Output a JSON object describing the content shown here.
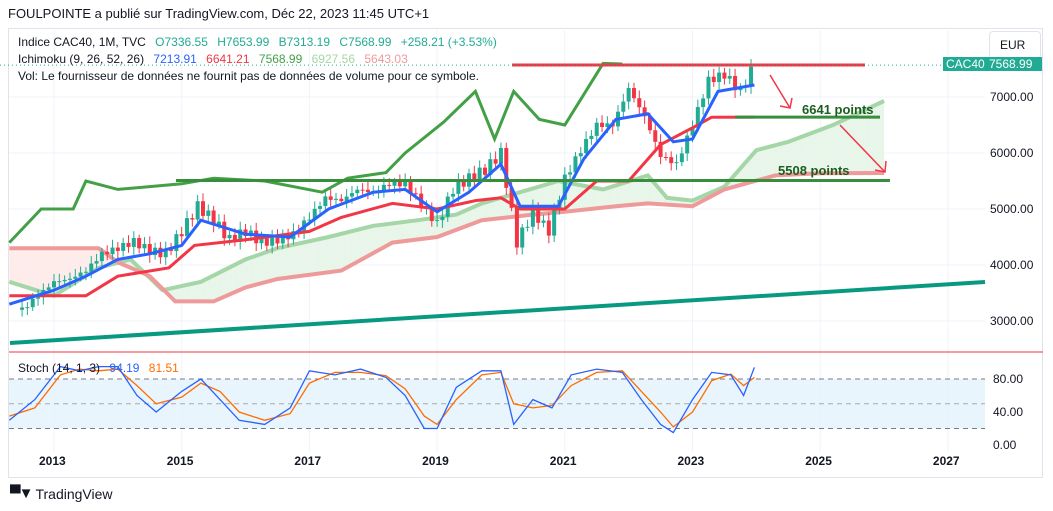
{
  "header": {
    "published": "FOULPOINTE a publié sur TradingView.com, Déc 22, 2023 11:45 UTC+1"
  },
  "legend": {
    "symbol": "Indice CAC40, 1M, TVC",
    "open": "O7336.55",
    "high": "H7653.99",
    "low": "B7313.19",
    "close": "C7568.99",
    "change": "+258.21 (+3.53%)",
    "ichimoku": "Ichimoku (9, 26, 52, 26)",
    "ich_values": [
      "7213.91",
      "6641.21",
      "7568.99",
      "6927.56",
      "5643.03"
    ],
    "vol": "Vol: Le fournisseur de données ne fournit pas de données de volume pour ce symbole.",
    "stoch": "Stoch (14, 1, 3)",
    "stoch_k": "94.19",
    "stoch_d": "81.51"
  },
  "currency": "EUR",
  "price_tag": {
    "symbol": "CAC40",
    "value": "7568.99"
  },
  "annotations": {
    "label_6641": "6641 points",
    "label_5508": "5508 points"
  },
  "footer": {
    "brand": "TradingView"
  },
  "colors": {
    "up": "#22ab94",
    "down": "#f23645",
    "tenkan": "#2962ff",
    "kijun": "#f23645",
    "spanA": "#a5d6a7",
    "spanB": "#ef9a9a",
    "lagging": "#43a047",
    "stochK": "#2962ff",
    "stochD": "#ff6d00"
  },
  "chart_data": {
    "type": "line",
    "title": "Indice CAC40, 1M, TVC",
    "x_ticks": [
      "2013",
      "2015",
      "2017",
      "2019",
      "2021",
      "2023",
      "2025",
      "2027"
    ],
    "y_ticks": [
      "7000.00",
      "6000.00",
      "5000.00",
      "4000.00",
      "3000.00"
    ],
    "stoch_ticks": [
      "80.00",
      "40.00",
      "0.00"
    ],
    "xlim": [
      2012.3,
      2027.6
    ],
    "ylim": [
      2500,
      8000
    ],
    "close": [
      [
        2012.5,
        3200
      ],
      [
        2012.75,
        3450
      ],
      [
        2013,
        3700
      ],
      [
        2013.25,
        3750
      ],
      [
        2013.5,
        3900
      ],
      [
        2013.75,
        4200
      ],
      [
        2014,
        4300
      ],
      [
        2014.25,
        4420
      ],
      [
        2014.5,
        4250
      ],
      [
        2014.75,
        4200
      ],
      [
        2015,
        4600
      ],
      [
        2015.25,
        5050
      ],
      [
        2015.5,
        4800
      ],
      [
        2015.75,
        4450
      ],
      [
        2016,
        4600
      ],
      [
        2016.25,
        4400
      ],
      [
        2016.5,
        4450
      ],
      [
        2016.75,
        4550
      ],
      [
        2017,
        4850
      ],
      [
        2017.25,
        5200
      ],
      [
        2017.5,
        5150
      ],
      [
        2017.75,
        5350
      ],
      [
        2018,
        5300
      ],
      [
        2018.25,
        5450
      ],
      [
        2018.5,
        5450
      ],
      [
        2018.75,
        5100
      ],
      [
        2019,
        4730
      ],
      [
        2019.25,
        5350
      ],
      [
        2019.5,
        5550
      ],
      [
        2019.75,
        5700
      ],
      [
        2020,
        6000
      ],
      [
        2020.25,
        4400
      ],
      [
        2020.5,
        4950
      ],
      [
        2020.75,
        4600
      ],
      [
        2021,
        5550
      ],
      [
        2021.25,
        6050
      ],
      [
        2021.5,
        6500
      ],
      [
        2021.75,
        6500
      ],
      [
        2022,
        7150
      ],
      [
        2022.25,
        6650
      ],
      [
        2022.5,
        5950
      ],
      [
        2022.75,
        5800
      ],
      [
        2023,
        6500
      ],
      [
        2023.25,
        7300
      ],
      [
        2023.5,
        7400
      ],
      [
        2023.75,
        7100
      ],
      [
        2023.97,
        7569
      ]
    ],
    "tenkan": [
      [
        2012.3,
        3300
      ],
      [
        2013,
        3550
      ],
      [
        2013.5,
        3800
      ],
      [
        2014,
        4100
      ],
      [
        2014.5,
        4200
      ],
      [
        2015,
        4350
      ],
      [
        2015.3,
        4800
      ],
      [
        2016,
        4550
      ],
      [
        2016.7,
        4500
      ],
      [
        2017.3,
        5000
      ],
      [
        2018,
        5300
      ],
      [
        2018.5,
        5350
      ],
      [
        2019,
        4950
      ],
      [
        2019.5,
        5300
      ],
      [
        2020,
        5800
      ],
      [
        2020.3,
        5050
      ],
      [
        2020.9,
        5050
      ],
      [
        2021.3,
        5900
      ],
      [
        2021.8,
        6600
      ],
      [
        2022.3,
        6700
      ],
      [
        2022.7,
        6200
      ],
      [
        2023,
        6250
      ],
      [
        2023.4,
        7100
      ],
      [
        2023.97,
        7214
      ]
    ],
    "kijun": [
      [
        2012.3,
        3450
      ],
      [
        2013.5,
        3450
      ],
      [
        2014,
        3800
      ],
      [
        2014.8,
        3950
      ],
      [
        2015.2,
        4350
      ],
      [
        2016,
        4450
      ],
      [
        2017,
        4600
      ],
      [
        2017.5,
        4850
      ],
      [
        2018.3,
        5100
      ],
      [
        2019,
        5000
      ],
      [
        2019.6,
        5150
      ],
      [
        2020,
        5200
      ],
      [
        2020.3,
        5000
      ],
      [
        2021,
        5000
      ],
      [
        2021.5,
        5500
      ],
      [
        2022,
        5500
      ],
      [
        2022.5,
        6150
      ],
      [
        2023,
        6450
      ],
      [
        2023.3,
        6640
      ],
      [
        2023.97,
        6641
      ]
    ],
    "spanA": [
      [
        2012.3,
        3700
      ],
      [
        2013,
        3450
      ],
      [
        2013.7,
        3950
      ],
      [
        2014.2,
        4100
      ],
      [
        2014.7,
        3550
      ],
      [
        2015.3,
        3700
      ],
      [
        2016,
        4100
      ],
      [
        2016.5,
        4300
      ],
      [
        2017.3,
        4500
      ],
      [
        2018,
        4700
      ],
      [
        2018.7,
        4800
      ],
      [
        2019.3,
        4900
      ],
      [
        2019.7,
        5100
      ],
      [
        2020.3,
        5300
      ],
      [
        2020.9,
        5500
      ],
      [
        2021.6,
        5350
      ],
      [
        2022.3,
        5600
      ],
      [
        2022.6,
        5200
      ],
      [
        2023,
        5150
      ],
      [
        2023.5,
        5400
      ],
      [
        2024,
        6050
      ],
      [
        2024.5,
        6200
      ],
      [
        2025.2,
        6500
      ],
      [
        2026,
        6930
      ]
    ],
    "spanB": [
      [
        2012.3,
        4300
      ],
      [
        2013.7,
        4300
      ],
      [
        2014,
        4050
      ],
      [
        2014.5,
        3800
      ],
      [
        2014.9,
        3350
      ],
      [
        2015.5,
        3350
      ],
      [
        2016,
        3600
      ],
      [
        2016.5,
        3750
      ],
      [
        2017.5,
        3900
      ],
      [
        2018.3,
        4400
      ],
      [
        2019,
        4500
      ],
      [
        2019.7,
        4800
      ],
      [
        2020.5,
        4900
      ],
      [
        2021,
        4950
      ],
      [
        2021.8,
        5050
      ],
      [
        2022.3,
        5100
      ],
      [
        2023,
        5050
      ],
      [
        2023.5,
        5350
      ],
      [
        2024.3,
        5600
      ],
      [
        2025,
        5640
      ],
      [
        2026,
        5643
      ]
    ],
    "lagging": [
      [
        2012.3,
        4400
      ],
      [
        2012.8,
        5000
      ],
      [
        2013.3,
        5000
      ],
      [
        2013.5,
        5500
      ],
      [
        2014,
        5350
      ],
      [
        2014.5,
        5400
      ],
      [
        2015,
        5450
      ],
      [
        2015.5,
        5550
      ],
      [
        2016.3,
        5500
      ],
      [
        2017.2,
        5300
      ],
      [
        2017.6,
        5550
      ],
      [
        2018.2,
        5650
      ],
      [
        2018.5,
        6000
      ],
      [
        2019.1,
        6550
      ],
      [
        2019.6,
        7100
      ],
      [
        2019.9,
        6250
      ],
      [
        2020.2,
        7100
      ],
      [
        2020.6,
        6600
      ],
      [
        2021,
        6500
      ],
      [
        2021.6,
        7600
      ],
      [
        2021.9,
        7590
      ]
    ],
    "stoch_k": [
      [
        2012.3,
        30
      ],
      [
        2012.7,
        55
      ],
      [
        2013.1,
        95
      ],
      [
        2013.4,
        90
      ],
      [
        2013.7,
        95
      ],
      [
        2014,
        95
      ],
      [
        2014.3,
        60
      ],
      [
        2014.6,
        40
      ],
      [
        2015,
        65
      ],
      [
        2015.3,
        80
      ],
      [
        2015.6,
        55
      ],
      [
        2015.9,
        30
      ],
      [
        2016.3,
        25
      ],
      [
        2016.7,
        45
      ],
      [
        2017,
        90
      ],
      [
        2017.4,
        85
      ],
      [
        2017.8,
        92
      ],
      [
        2018.2,
        82
      ],
      [
        2018.5,
        60
      ],
      [
        2018.8,
        20
      ],
      [
        2019,
        20
      ],
      [
        2019.3,
        70
      ],
      [
        2019.7,
        90
      ],
      [
        2020,
        90
      ],
      [
        2020.2,
        25
      ],
      [
        2020.5,
        55
      ],
      [
        2020.8,
        45
      ],
      [
        2021.1,
        85
      ],
      [
        2021.5,
        92
      ],
      [
        2021.9,
        88
      ],
      [
        2022.2,
        55
      ],
      [
        2022.5,
        25
      ],
      [
        2022.7,
        15
      ],
      [
        2023,
        55
      ],
      [
        2023.3,
        88
      ],
      [
        2023.6,
        85
      ],
      [
        2023.8,
        60
      ],
      [
        2023.97,
        94
      ]
    ],
    "stoch_d": [
      [
        2012.3,
        35
      ],
      [
        2012.7,
        45
      ],
      [
        2013.1,
        85
      ],
      [
        2013.4,
        92
      ],
      [
        2013.7,
        90
      ],
      [
        2014,
        92
      ],
      [
        2014.3,
        72
      ],
      [
        2014.6,
        50
      ],
      [
        2015,
        58
      ],
      [
        2015.3,
        75
      ],
      [
        2015.6,
        65
      ],
      [
        2015.9,
        40
      ],
      [
        2016.3,
        30
      ],
      [
        2016.7,
        38
      ],
      [
        2017,
        75
      ],
      [
        2017.4,
        88
      ],
      [
        2017.8,
        88
      ],
      [
        2018.2,
        84
      ],
      [
        2018.5,
        68
      ],
      [
        2018.8,
        35
      ],
      [
        2019,
        25
      ],
      [
        2019.3,
        55
      ],
      [
        2019.7,
        85
      ],
      [
        2020,
        88
      ],
      [
        2020.2,
        50
      ],
      [
        2020.5,
        45
      ],
      [
        2020.8,
        48
      ],
      [
        2021.1,
        72
      ],
      [
        2021.5,
        88
      ],
      [
        2021.9,
        90
      ],
      [
        2022.2,
        65
      ],
      [
        2022.5,
        40
      ],
      [
        2022.7,
        22
      ],
      [
        2023,
        40
      ],
      [
        2023.3,
        78
      ],
      [
        2023.6,
        86
      ],
      [
        2023.8,
        72
      ],
      [
        2023.97,
        82
      ]
    ]
  }
}
